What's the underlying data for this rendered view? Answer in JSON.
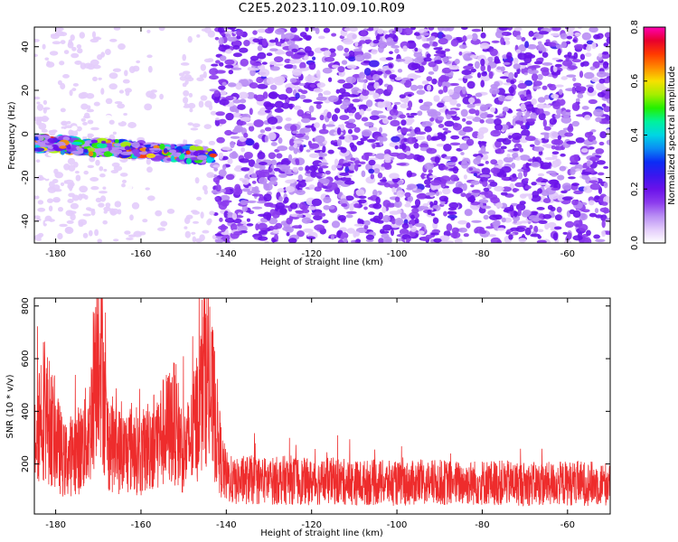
{
  "figure_title": "C2E5.2023.110.09.10.R09",
  "colors": {
    "spectro_scale": [
      "#ffffff",
      "#e3ccfb",
      "#b98ef4",
      "#8c3bee",
      "#6a12ea",
      "#3a17ee",
      "#0b2cf5",
      "#0a8cf4",
      "#00d6e4",
      "#00f29c",
      "#23f000",
      "#a5ee00",
      "#f7e000",
      "#ff8a00",
      "#ff3a00",
      "#e8002d",
      "#ff00b4"
    ],
    "snr_line": "#ee2c2c",
    "axis": "#000000"
  },
  "chart_data": [
    {
      "type": "heatmap",
      "title": "",
      "xlabel": "Height of straight line (km)",
      "ylabel": "Frequency (Hz)",
      "xlim": [
        -185,
        -50
      ],
      "ylim": [
        -50,
        49
      ],
      "xticks": [
        -180,
        -160,
        -140,
        -120,
        -100,
        -80,
        -60
      ],
      "yticks": [
        -40,
        -20,
        0,
        20,
        40
      ],
      "colorbar": {
        "label": "Normalized spectral amplitude",
        "range": [
          0.0,
          0.8
        ],
        "ticks": [
          "0.0",
          "0.2",
          "0.4",
          "0.6",
          "0.8"
        ]
      },
      "features": [
        {
          "name": "meteor signal band",
          "x_range": [
            -185,
            -143
          ],
          "y_center": -3,
          "peak_amplitude": 0.78
        },
        {
          "name": "background noise",
          "x_range": [
            -143,
            -50
          ],
          "y_range": [
            -50,
            49
          ],
          "typical_amplitude": 0.12
        },
        {
          "name": "sparse noise",
          "x_range": [
            -185,
            -143
          ],
          "y_range": [
            -50,
            49
          ],
          "typical_amplitude": 0.04
        }
      ]
    },
    {
      "type": "line",
      "title": "",
      "xlabel": "Height of straight line (km)",
      "ylabel": "SNR (10 * v/v)",
      "xlim": [
        -185,
        -50
      ],
      "ylim": [
        10,
        830
      ],
      "xticks": [
        -180,
        -160,
        -140,
        -120,
        -100,
        -80,
        -60
      ],
      "yticks": [
        200,
        400,
        600,
        800
      ],
      "series": [
        {
          "x": [
            -185,
            -183,
            -180,
            -178,
            -176,
            -174,
            -172,
            -171,
            -170,
            -169,
            -168,
            -166,
            -164,
            -162,
            -160,
            -158,
            -156,
            -154,
            -152,
            -150,
            -148,
            -146,
            -145,
            -144,
            -143,
            -142,
            -141,
            -140,
            -138,
            -135,
            -130,
            -125,
            -120,
            -115,
            -110,
            -105,
            -100,
            -95,
            -90,
            -85,
            -80,
            -75,
            -70,
            -65,
            -60,
            -55,
            -50
          ],
          "y": [
            330,
            420,
            300,
            210,
            240,
            260,
            330,
            520,
            780,
            560,
            300,
            260,
            240,
            270,
            230,
            280,
            300,
            330,
            360,
            240,
            300,
            450,
            620,
            470,
            420,
            300,
            190,
            150,
            130,
            140,
            135,
            140,
            130,
            135,
            128,
            130,
            125,
            128,
            130,
            127,
            130,
            128,
            125,
            124,
            127,
            126,
            125
          ]
        }
      ]
    }
  ]
}
